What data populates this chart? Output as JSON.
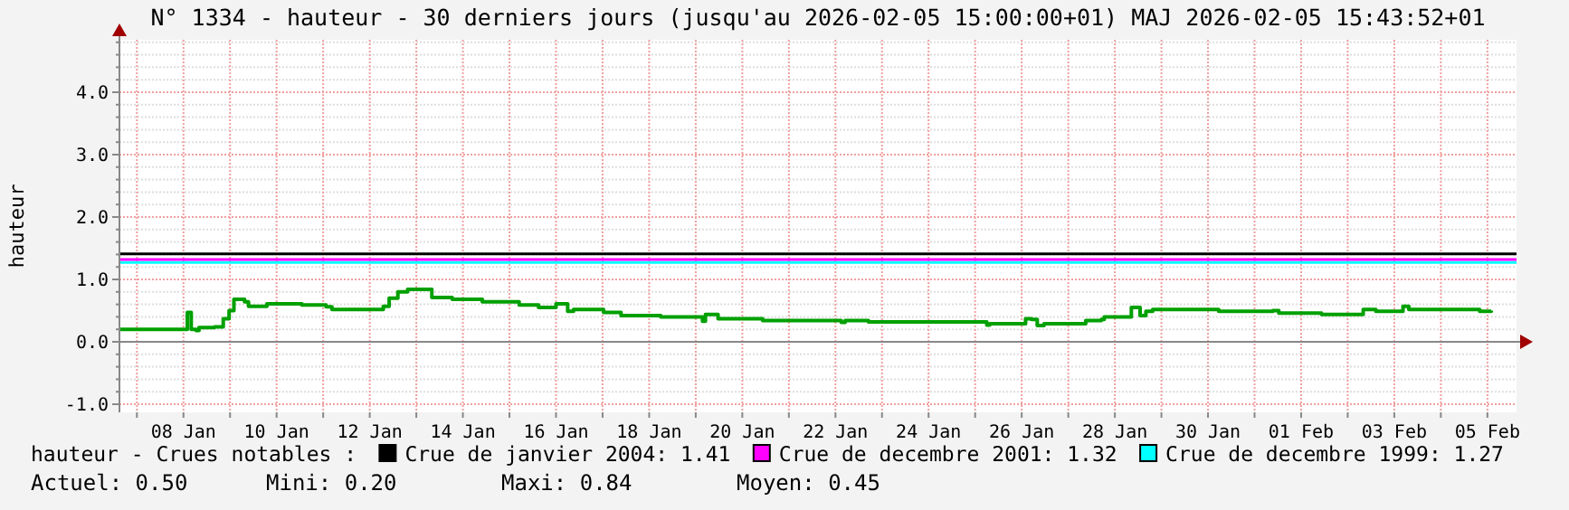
{
  "chart_data": {
    "type": "step",
    "title": "N° 1334 - hauteur - 30 derniers jours (jusqu'au 2026-02-05 15:00:00+01) MAJ 2026-02-05 15:43:52+01",
    "ylabel": "hauteur",
    "legend_title": "hauteur - Crues notables :",
    "legend": "bottom",
    "grid": true,
    "xlim": [
      "2026-01-06T15:00",
      "2026-02-05T15:00"
    ],
    "xticks": [
      {
        "value": "2026-01-07",
        "label": null
      },
      {
        "value": "2026-01-08",
        "label": "08 Jan"
      },
      {
        "value": "2026-01-09",
        "label": null
      },
      {
        "value": "2026-01-10",
        "label": "10 Jan"
      },
      {
        "value": "2026-01-11",
        "label": null
      },
      {
        "value": "2026-01-12",
        "label": "12 Jan"
      },
      {
        "value": "2026-01-13",
        "label": null
      },
      {
        "value": "2026-01-14",
        "label": "14 Jan"
      },
      {
        "value": "2026-01-15",
        "label": null
      },
      {
        "value": "2026-01-16",
        "label": "16 Jan"
      },
      {
        "value": "2026-01-17",
        "label": null
      },
      {
        "value": "2026-01-18",
        "label": "18 Jan"
      },
      {
        "value": "2026-01-19",
        "label": null
      },
      {
        "value": "2026-01-20",
        "label": "20 Jan"
      },
      {
        "value": "2026-01-21",
        "label": null
      },
      {
        "value": "2026-01-22",
        "label": "22 Jan"
      },
      {
        "value": "2026-01-23",
        "label": null
      },
      {
        "value": "2026-01-24",
        "label": "24 Jan"
      },
      {
        "value": "2026-01-25",
        "label": null
      },
      {
        "value": "2026-01-26",
        "label": "26 Jan"
      },
      {
        "value": "2026-01-27",
        "label": null
      },
      {
        "value": "2026-01-28",
        "label": "28 Jan"
      },
      {
        "value": "2026-01-29",
        "label": null
      },
      {
        "value": "2026-01-30",
        "label": "30 Jan"
      },
      {
        "value": "2026-01-31",
        "label": null
      },
      {
        "value": "2026-02-01",
        "label": "01 Feb"
      },
      {
        "value": "2026-02-02",
        "label": null
      },
      {
        "value": "2026-02-03",
        "label": "03 Feb"
      },
      {
        "value": "2026-02-04",
        "label": null
      },
      {
        "value": "2026-02-05",
        "label": "05 Feb"
      }
    ],
    "ylim": [
      -1.13,
      4.84
    ],
    "yticks": [
      {
        "value": -1,
        "label": "-1.0"
      },
      {
        "value": -0.8,
        "label": null
      },
      {
        "value": -0.6,
        "label": null
      },
      {
        "value": -0.4,
        "label": null
      },
      {
        "value": -0.2,
        "label": null
      },
      {
        "value": 0,
        "label": "0.0"
      },
      {
        "value": 0.2,
        "label": null
      },
      {
        "value": 0.4,
        "label": null
      },
      {
        "value": 0.6,
        "label": null
      },
      {
        "value": 0.8,
        "label": null
      },
      {
        "value": 1,
        "label": "1.0"
      },
      {
        "value": 1.2,
        "label": null
      },
      {
        "value": 1.4,
        "label": null
      },
      {
        "value": 1.6,
        "label": null
      },
      {
        "value": 1.8,
        "label": null
      },
      {
        "value": 2,
        "label": "2.0"
      },
      {
        "value": 2.2,
        "label": null
      },
      {
        "value": 2.4,
        "label": null
      },
      {
        "value": 2.6,
        "label": null
      },
      {
        "value": 2.8,
        "label": null
      },
      {
        "value": 3,
        "label": "3.0"
      },
      {
        "value": 3.2,
        "label": null
      },
      {
        "value": 3.4,
        "label": null
      },
      {
        "value": 3.6,
        "label": null
      },
      {
        "value": 3.8,
        "label": null
      },
      {
        "value": 4,
        "label": "4.0"
      },
      {
        "value": 4.2,
        "label": null
      },
      {
        "value": 4.4,
        "label": null
      },
      {
        "value": 4.6,
        "label": null
      },
      {
        "value": 4.8,
        "label": null
      }
    ],
    "ref_lines": [
      {
        "axis": "y",
        "value": 1.27,
        "label": "Crue de decembre 1999: 1.27",
        "color": "#00ffff"
      },
      {
        "axis": "y",
        "value": 1.41,
        "label": "Crue de janvier 2004: 1.41",
        "color": "#000000"
      },
      {
        "axis": "y",
        "value": 1.32,
        "label": "Crue de decembre 2001: 1.32",
        "color": "#ff00ff"
      }
    ],
    "series": [
      {
        "color": "#00a000",
        "x": [
          "2026-01-06T15:30",
          "2026-01-08T01:00",
          "2026-01-08T02:00",
          "2026-01-08T04:00",
          "2026-01-08T06:30",
          "2026-01-08T08:00",
          "2026-01-08T16:00",
          "2026-01-08T20:30",
          "2026-01-08T23:30",
          "2026-01-09T02:00",
          "2026-01-09T07:30",
          "2026-01-09T09:30",
          "2026-01-09T19:00",
          "2026-01-10T13:00",
          "2026-01-11T01:30",
          "2026-01-11T04:30",
          "2026-01-12T07:00",
          "2026-01-12T10:00",
          "2026-01-12T14:30",
          "2026-01-12T19:30",
          "2026-01-13T08:00",
          "2026-01-13T18:30",
          "2026-01-14T10:00",
          "2026-01-15T05:00",
          "2026-01-15T15:00",
          "2026-01-16T00:00",
          "2026-01-16T06:00",
          "2026-01-16T09:00",
          "2026-01-17T00:30",
          "2026-01-17T09:30",
          "2026-01-18T06:00",
          "2026-01-19T03:30",
          "2026-01-19T05:00",
          "2026-01-19T11:30",
          "2026-01-20T10:30",
          "2026-01-22T03:00",
          "2026-01-22T05:00",
          "2026-01-22T17:00",
          "2026-01-25T06:00",
          "2026-01-25T07:30",
          "2026-01-26T02:00",
          "2026-01-26T05:00",
          "2026-01-26T08:00",
          "2026-01-26T11:30",
          "2026-01-27T09:00",
          "2026-01-27T17:00",
          "2026-01-27T18:30",
          "2026-01-28T08:30",
          "2026-01-28T13:00",
          "2026-01-28T16:00",
          "2026-01-28T19:30",
          "2026-01-30T05:30",
          "2026-01-31T09:30",
          "2026-01-31T12:30",
          "2026-02-01T10:30",
          "2026-02-02T08:00",
          "2026-02-02T14:30",
          "2026-02-03T04:30",
          "2026-02-03T07:30",
          "2026-02-04T20:00",
          "2026-02-05T02:00"
        ],
        "values": [
          0.2,
          0.2,
          0.47,
          0.2,
          0.18,
          0.23,
          0.24,
          0.37,
          0.5,
          0.68,
          0.64,
          0.57,
          0.61,
          0.59,
          0.56,
          0.52,
          0.57,
          0.7,
          0.8,
          0.84,
          0.71,
          0.68,
          0.64,
          0.59,
          0.55,
          0.61,
          0.49,
          0.52,
          0.47,
          0.42,
          0.4,
          0.33,
          0.44,
          0.37,
          0.34,
          0.31,
          0.34,
          0.32,
          0.27,
          0.29,
          0.37,
          0.36,
          0.26,
          0.29,
          0.34,
          0.36,
          0.4,
          0.55,
          0.42,
          0.49,
          0.52,
          0.49,
          0.5,
          0.46,
          0.44,
          0.52,
          0.49,
          0.57,
          0.52,
          0.49,
          0.5
        ]
      }
    ],
    "annotations": [
      "Actuel: 0.50",
      "Mini: 0.20",
      "Maxi: 0.84",
      "Moyen: 0.45"
    ]
  }
}
